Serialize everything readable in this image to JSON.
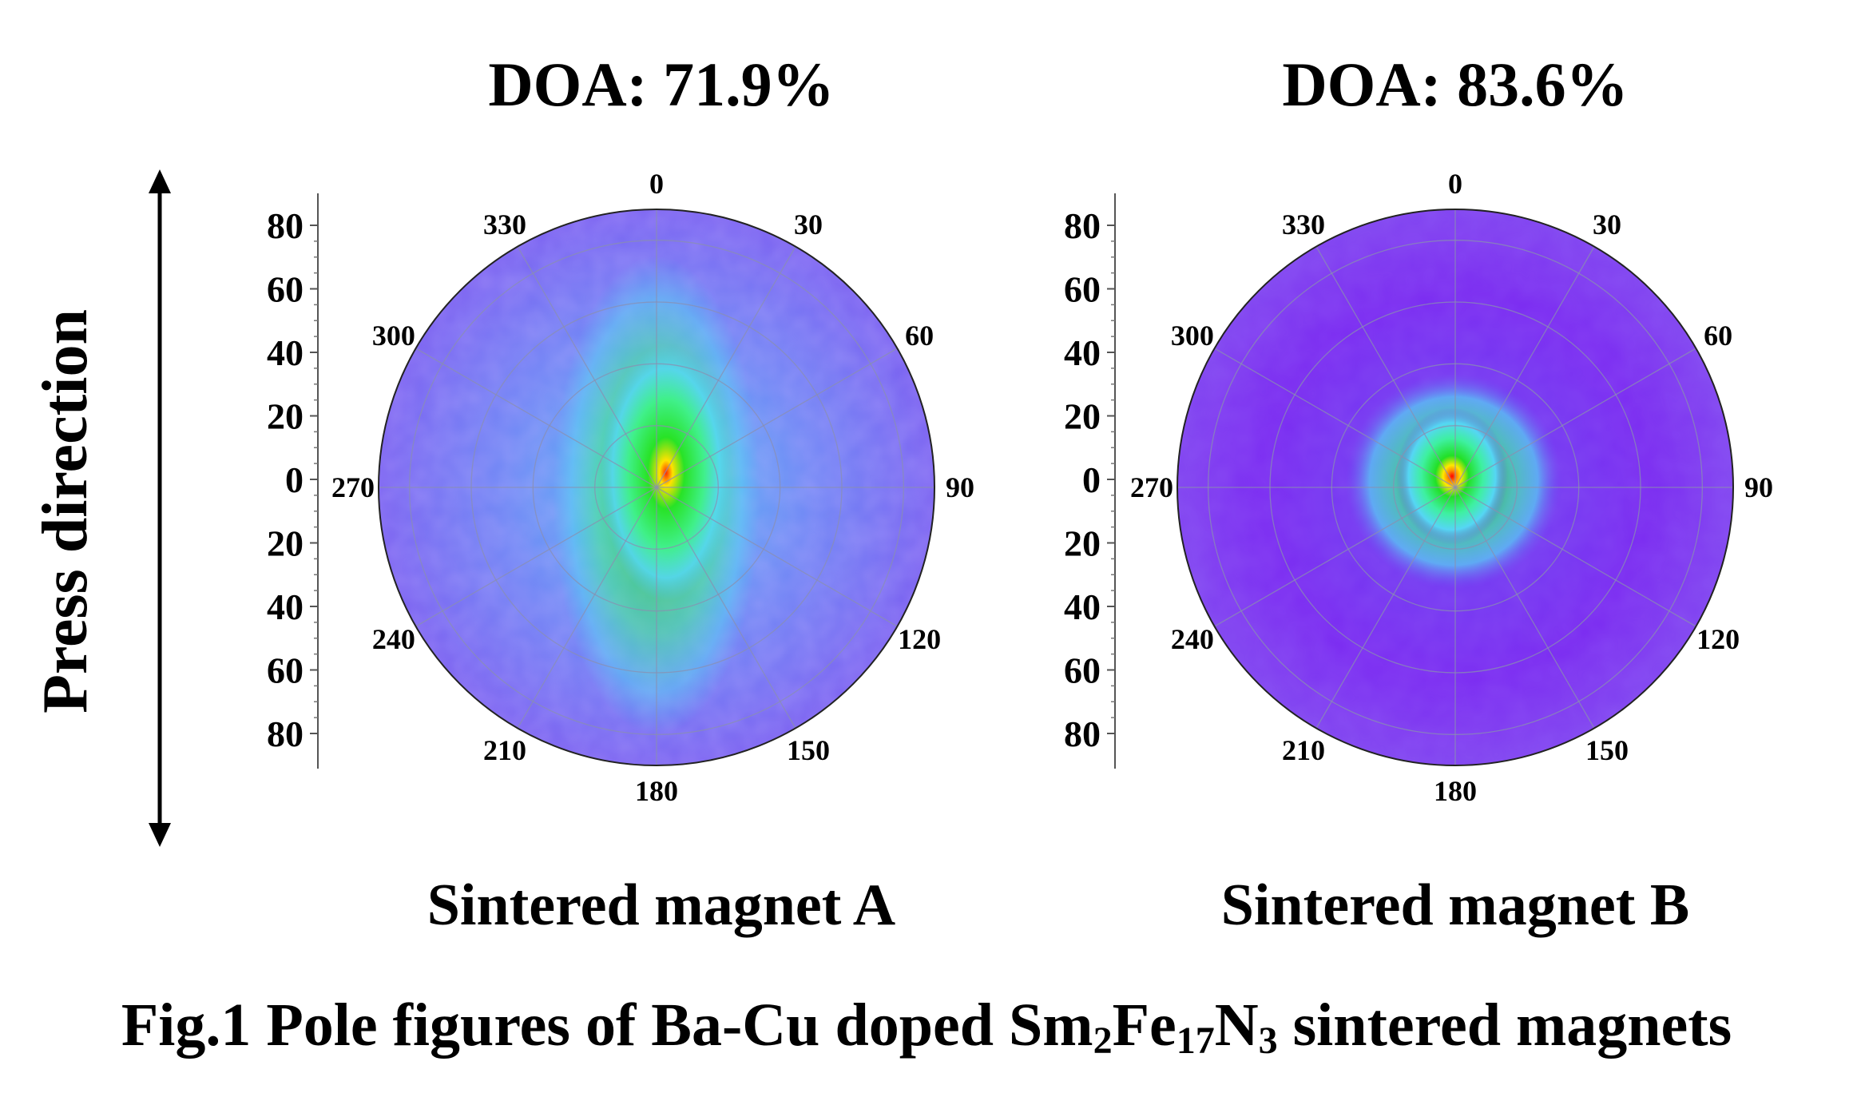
{
  "press_label": "Press direction",
  "figure_caption": {
    "prefix": "Fig.1 Pole figures of Ba-Cu doped Sm",
    "sub1": "2",
    "mid1": "Fe",
    "sub2": "17",
    "mid2": "N",
    "sub3": "3",
    "suffix": " sintered magnets"
  },
  "chart_data": [
    {
      "type": "heatmap",
      "subtype": "polar pole figure",
      "title": "DOA: 71.9%",
      "caption": "Sintered magnet A",
      "angle_ticks": [
        "0",
        "30",
        "60",
        "90",
        "120",
        "150",
        "180",
        "210",
        "240",
        "270",
        "300",
        "330"
      ],
      "radial_ticks": [
        "80",
        "60",
        "40",
        "20",
        "0",
        "20",
        "40",
        "60",
        "80"
      ],
      "radial_range": [
        0,
        90
      ],
      "grid": true,
      "colormap": [
        "#7a2cf0",
        "#5a7cf6",
        "#55d6f4",
        "#3ef089",
        "#22e026",
        "#9bef21",
        "#ffe200",
        "#ff2200"
      ],
      "intensity_summary": "moderate spread, intensity elongated along 0-180 axis"
    },
    {
      "type": "heatmap",
      "subtype": "polar pole figure",
      "title": "DOA: 83.6%",
      "caption": "Sintered magnet B",
      "angle_ticks": [
        "0",
        "30",
        "60",
        "90",
        "120",
        "150",
        "180",
        "210",
        "240",
        "270",
        "300",
        "330"
      ],
      "radial_ticks": [
        "80",
        "60",
        "40",
        "20",
        "0",
        "20",
        "40",
        "60",
        "80"
      ],
      "radial_range": [
        0,
        90
      ],
      "grid": true,
      "colormap": [
        "#7a2cf0",
        "#5a7cf6",
        "#55d6f4",
        "#3ef089",
        "#22e026",
        "#9bef21",
        "#ffe200",
        "#ff2200"
      ],
      "intensity_summary": "sharp concentrated peak at center"
    }
  ]
}
